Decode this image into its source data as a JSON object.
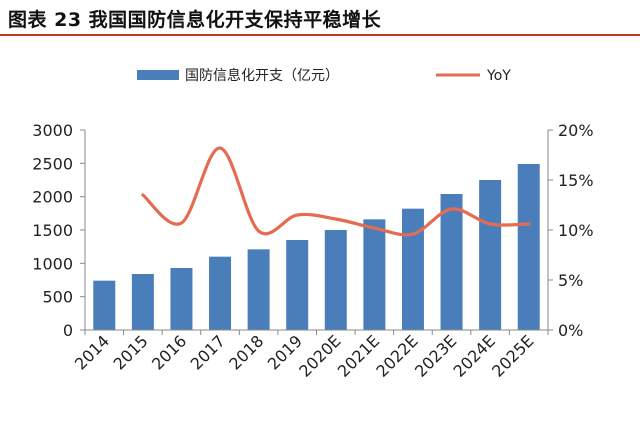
{
  "title": "图表 23 我国国防信息化开支保持平稳增长",
  "chart_data": {
    "type": "bar",
    "categories": [
      "2014",
      "2015",
      "2016",
      "2017",
      "2018",
      "2019",
      "2020E",
      "2021E",
      "2022E",
      "2023E",
      "2024E",
      "2025E"
    ],
    "series": [
      {
        "name": "国防信息化开支（亿元）",
        "type": "bar",
        "axis": "left",
        "color": "#4a7ebb",
        "values": [
          740,
          840,
          930,
          1100,
          1210,
          1350,
          1500,
          1660,
          1820,
          2040,
          2250,
          2490
        ]
      },
      {
        "name": "YoY",
        "type": "line",
        "axis": "right",
        "color": "#e46c52",
        "values": [
          null,
          13.5,
          10.7,
          18.2,
          9.9,
          11.5,
          11.1,
          10.2,
          9.6,
          12.1,
          10.6,
          10.6
        ]
      }
    ],
    "y_left": {
      "min": 0,
      "max": 3000,
      "ticks": [
        0,
        500,
        1000,
        1500,
        2000,
        2500,
        3000
      ]
    },
    "y_right": {
      "min": 0,
      "max": 20,
      "ticks": [
        "0%",
        "5%",
        "10%",
        "15%",
        "20%"
      ]
    },
    "legend": "top",
    "grid": false
  }
}
